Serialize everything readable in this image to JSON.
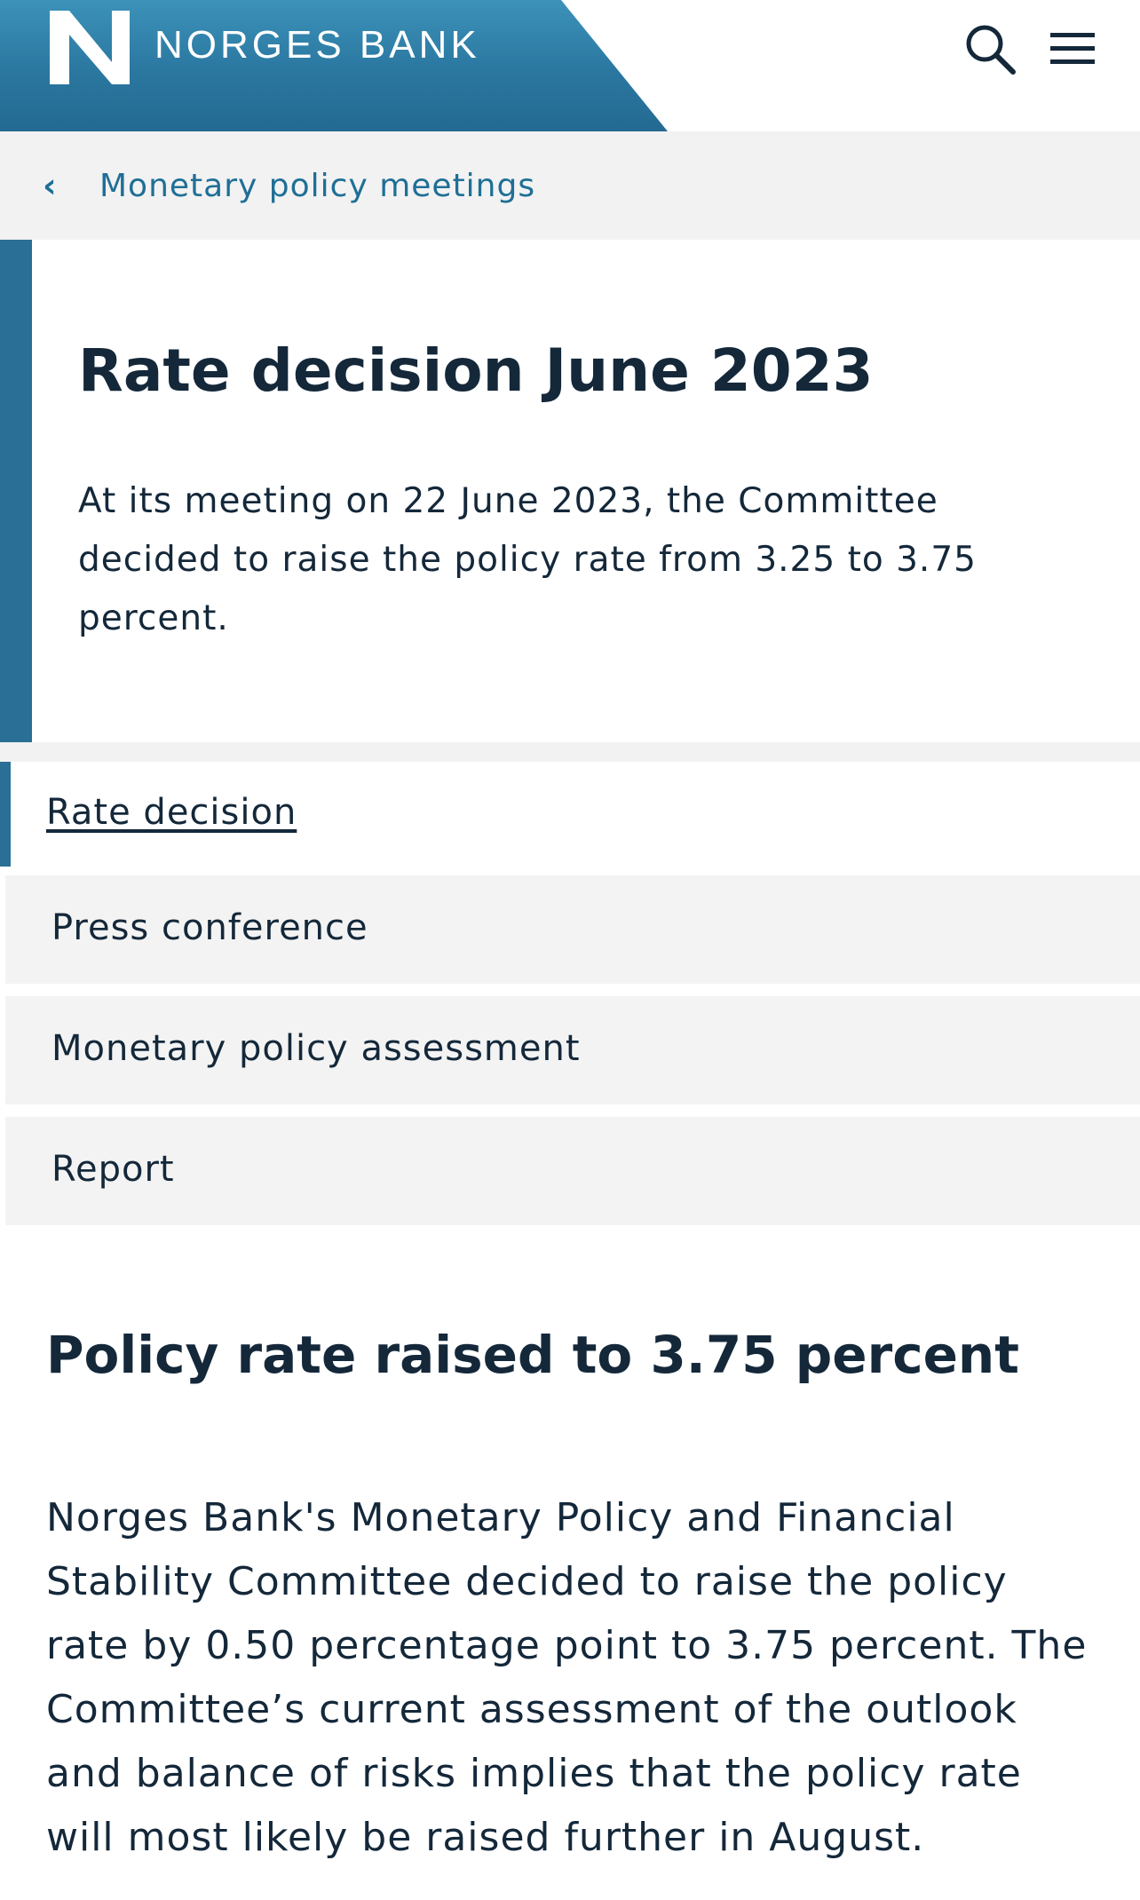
{
  "header": {
    "brand_name": "NORGES BANK",
    "logo_icon": "norges-bank-logo",
    "search_icon": "search-icon",
    "menu_icon": "hamburger-menu-icon",
    "brand_color": "#2a77a0"
  },
  "breadcrumb": {
    "chevron": "‹",
    "label": "Monetary policy meetings"
  },
  "intro": {
    "title": "Rate decision June 2023",
    "lead": "At its meeting on 22 June 2023, the Committee decided to raise the policy rate from 3.25 to 3.75 percent."
  },
  "tabs": [
    {
      "label": "Rate decision",
      "active": true
    },
    {
      "label": "Press conference",
      "active": false
    },
    {
      "label": "Monetary policy assessment",
      "active": false
    },
    {
      "label": "Report",
      "active": false
    }
  ],
  "article": {
    "heading": "Policy rate raised to 3.75 percent",
    "body": "Norges Bank's Monetary Policy and Financial Stability Committee decided to raise the policy rate by 0.50 percentage point to 3.75 percent. The Committee’s current assessment of the outlook and balance of risks implies that the policy rate will most likely be raised further in August."
  }
}
